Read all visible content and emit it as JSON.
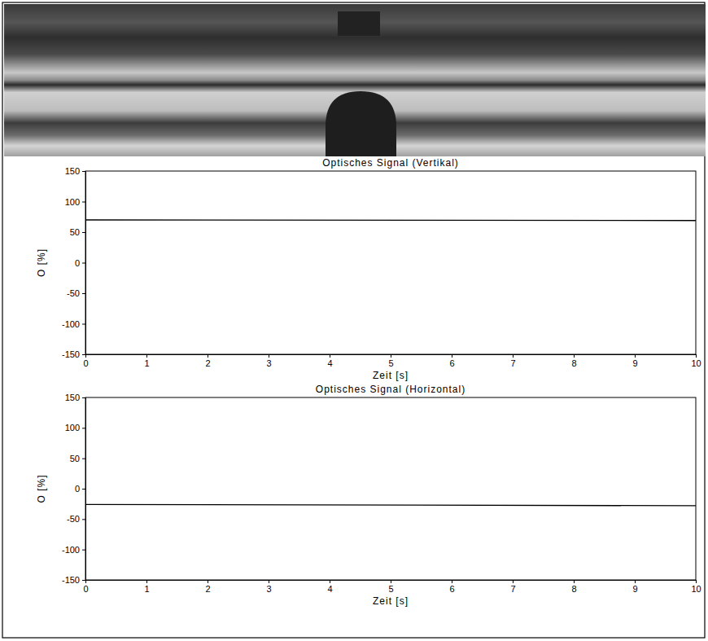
{
  "chart_data": [
    {
      "type": "line",
      "title": "Optisches Signal (Vertikal)",
      "x_label": "Zeit [s]",
      "y_label": "O [%]",
      "x": [
        0,
        10
      ],
      "values": [
        70,
        69
      ],
      "color": "#000000",
      "xlim": [
        0,
        10
      ],
      "ylim": [
        -150,
        150
      ],
      "xticks": [
        0,
        1,
        2,
        3,
        4,
        5,
        6,
        7,
        8,
        9,
        10
      ],
      "yticks": [
        -150,
        -100,
        -50,
        0,
        50,
        100,
        150
      ]
    },
    {
      "type": "line",
      "title": "Optisches Signal (Horizontal)",
      "x_label": "Zeit [s]",
      "y_label": "O [%]",
      "x": [
        0,
        10
      ],
      "values": [
        -26,
        -28
      ],
      "color": "#000000",
      "xlim": [
        0,
        10
      ],
      "ylim": [
        -150,
        150
      ],
      "xticks": [
        0,
        1,
        2,
        3,
        4,
        5,
        6,
        7,
        8,
        9,
        10
      ],
      "yticks": [
        -150,
        -100,
        -50,
        0,
        50,
        100,
        150
      ]
    }
  ]
}
